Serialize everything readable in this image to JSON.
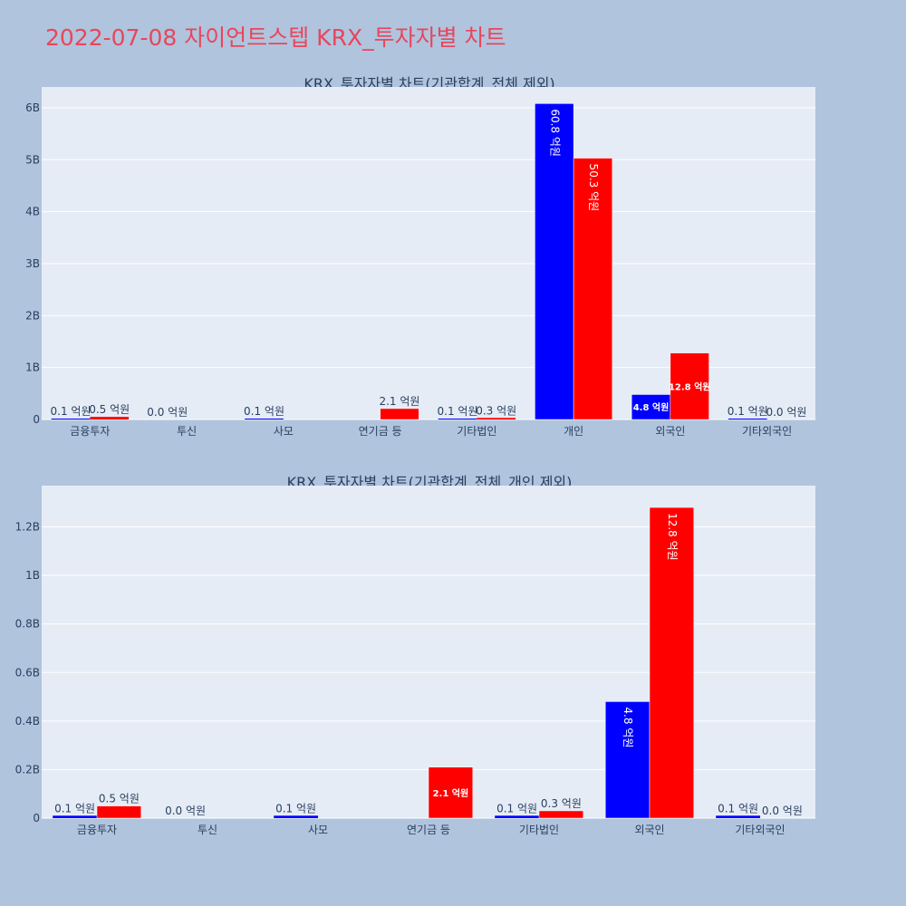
{
  "page_title": "2022-07-08 자이언트스텝 KRX_투자자별 차트",
  "colors": {
    "buy": "#0000ff",
    "sell": "#ff0000",
    "title": "#e8465c",
    "plot_bg": "#e5ecf6"
  },
  "chart_data": [
    {
      "type": "bar",
      "title": "KRX_투자자별 차트(기관합계_전체 제외)",
      "categories": [
        "금융투자",
        "투신",
        "사모",
        "연기금 등",
        "기타법인",
        "개인",
        "외국인",
        "기타외국인"
      ],
      "series": [
        {
          "color": "#0000ff",
          "values": [
            10000000,
            0,
            10000000,
            null,
            10000000,
            6080000000,
            480000000,
            10000000
          ],
          "labels": [
            "0.1 억원",
            "0.0 억원",
            "0.1 억원",
            "",
            "0.1 억원",
            "60.8 억원",
            "4.8 억원",
            "0.1 억원"
          ]
        },
        {
          "color": "#ff0000",
          "values": [
            50000000,
            null,
            null,
            210000000,
            30000000,
            5030000000,
            1280000000,
            0
          ],
          "labels": [
            "0.5 억원",
            "",
            "",
            "2.1 억원",
            "0.3 억원",
            "50.3 억원",
            "12.8 억원",
            "0.0 억원"
          ]
        }
      ],
      "yticks": [
        0,
        1000000000,
        2000000000,
        3000000000,
        4000000000,
        5000000000,
        6000000000
      ],
      "ytick_labels": [
        "0",
        "1B",
        "2B",
        "3B",
        "4B",
        "5B",
        "6B"
      ],
      "ylim": [
        0,
        6400000000
      ],
      "grid": true
    },
    {
      "type": "bar",
      "title": "KRX_투자자별 차트(기관합계_전체_개인 제외)",
      "categories": [
        "금융투자",
        "투신",
        "사모",
        "연기금 등",
        "기타법인",
        "외국인",
        "기타외국인"
      ],
      "series": [
        {
          "color": "#0000ff",
          "values": [
            10000000,
            0,
            10000000,
            null,
            10000000,
            480000000,
            10000000
          ],
          "labels": [
            "0.1 억원",
            "0.0 억원",
            "0.1 억원",
            "",
            "0.1 억원",
            "4.8 억원",
            "0.1 억원"
          ]
        },
        {
          "color": "#ff0000",
          "values": [
            50000000,
            null,
            null,
            210000000,
            30000000,
            1280000000,
            0
          ],
          "labels": [
            "0.5 억원",
            "",
            "",
            "2.1 억원",
            "0.3 억원",
            "12.8 억원",
            "0.0 억원"
          ]
        }
      ],
      "yticks": [
        0,
        200000000,
        400000000,
        600000000,
        800000000,
        1000000000,
        1200000000
      ],
      "ytick_labels": [
        "0",
        "0.2B",
        "0.4B",
        "0.6B",
        "0.8B",
        "1B",
        "1.2B"
      ],
      "ylim": [
        0,
        1370000000
      ],
      "grid": true
    }
  ]
}
